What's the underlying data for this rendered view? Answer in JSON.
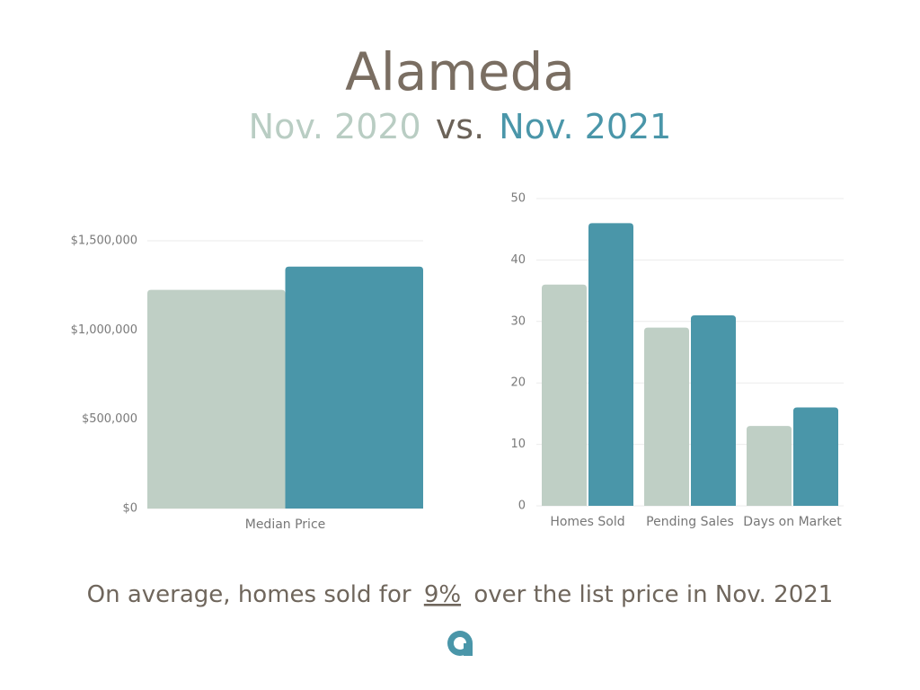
{
  "header": {
    "title": "Alameda",
    "subtitle": [
      "Nov. 2020",
      "vs.",
      "Nov. 2021"
    ]
  },
  "footer": {
    "before": "On average, homes sold for",
    "highlight": "9%",
    "after": "over the list price in Nov. 2021"
  },
  "chart_data": [
    {
      "type": "bar",
      "categories": [
        "Median Price"
      ],
      "series": [
        {
          "color": "#bfcfc5",
          "values": [
            1225000
          ]
        },
        {
          "color": "#4a96a9",
          "values": [
            1355000
          ]
        }
      ],
      "ylim": [
        0,
        1500000
      ],
      "yticks": [
        {
          "value": 0,
          "label": "$0"
        },
        {
          "value": 500000,
          "label": "$500,000"
        },
        {
          "value": 1000000,
          "label": "$1,000,000"
        },
        {
          "value": 1500000,
          "label": "$1,500,000"
        }
      ],
      "grid": true
    },
    {
      "type": "bar",
      "categories": [
        "Homes Sold",
        "Pending Sales",
        "Days on Market"
      ],
      "series": [
        {
          "color": "#bfcfc5",
          "values": [
            36,
            29,
            13
          ]
        },
        {
          "color": "#4a96a9",
          "values": [
            46,
            31,
            16
          ]
        }
      ],
      "ylim": [
        0,
        50
      ],
      "yticks": [
        0,
        10,
        20,
        30,
        40,
        50
      ],
      "grid": true
    }
  ]
}
